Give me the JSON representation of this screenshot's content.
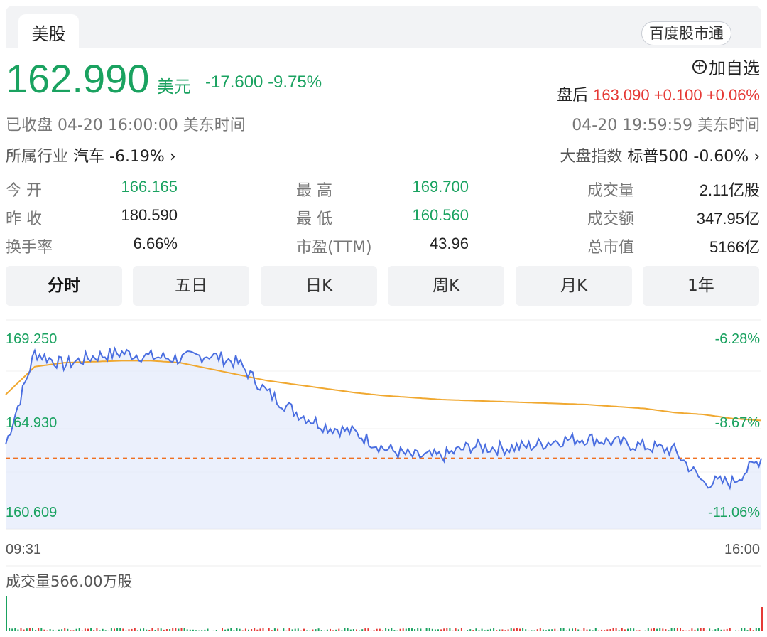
{
  "tabs": {
    "active": "美股",
    "pill": "百度股市通"
  },
  "quote": {
    "price": "162.990",
    "currency": "美元",
    "change": "-17.600 -9.75%",
    "add_watchlist": "加自选",
    "after_label": "盘后",
    "after_value": "163.090 +0.100 +0.06%",
    "status_left": "已收盘  04-20 16:00:00  美东时间",
    "status_right": "04-20 19:59:59  美东时间",
    "industry_label": "所属行业",
    "industry_value": "汽车 -6.19% ›",
    "index_label": "大盘指数",
    "index_value": "标普500 -0.60% ›"
  },
  "stats": {
    "open_label": "今  开",
    "open": "166.165",
    "prev_label": "昨  收",
    "prev": "180.590",
    "turnover_label": "换手率",
    "turnover": "6.66%",
    "high_label": "最  高",
    "high": "169.700",
    "low_label": "最  低",
    "low": "160.560",
    "pe_label": "市盈(TTM)",
    "pe": "43.96",
    "vol_label": "成交量",
    "vol": "2.11亿股",
    "amt_label": "成交额",
    "amt": "347.95亿",
    "cap_label": "总市值",
    "cap": "5166亿"
  },
  "periods": [
    "分时",
    "五日",
    "日K",
    "周K",
    "月K",
    "1年"
  ],
  "chart_labels": {
    "y_top": "169.250",
    "y_mid": "164.930",
    "y_bot": "160.609",
    "p_top": "-6.28%",
    "p_mid": "-8.67%",
    "p_bot": "-11.06%",
    "t_start": "09:31",
    "t_end": "16:00",
    "volume": "成交量566.00万股"
  },
  "colors": {
    "green": "#1aa260",
    "red": "#e53935",
    "line": "#4a6ee0",
    "avg": "#f0a830",
    "ref": "#f07020"
  },
  "chart_data": {
    "type": "line",
    "x": [
      "09:31",
      "09:45",
      "10:00",
      "10:15",
      "10:30",
      "10:45",
      "11:00",
      "11:15",
      "11:30",
      "11:45",
      "12:00",
      "12:15",
      "12:30",
      "12:45",
      "13:00",
      "13:15",
      "13:30",
      "13:45",
      "14:00",
      "14:15",
      "14:30",
      "14:45",
      "15:00",
      "15:15",
      "15:30",
      "15:45",
      "16:00"
    ],
    "series": [
      {
        "values": [
          164.0,
          168.6,
          168.0,
          168.4,
          168.6,
          168.4,
          168.3,
          168.5,
          168.1,
          166.6,
          165.6,
          164.9,
          164.6,
          163.8,
          163.4,
          163.4,
          163.9,
          163.8,
          163.9,
          164.2,
          164.3,
          164.1,
          163.9,
          163.7,
          162.1,
          162.1,
          163.3
        ]
      },
      {
        "values": [
          166.5,
          167.9,
          168.1,
          168.15,
          168.2,
          168.2,
          168.1,
          167.8,
          167.5,
          167.2,
          167.0,
          166.8,
          166.6,
          166.45,
          166.35,
          166.25,
          166.2,
          166.15,
          166.1,
          166.05,
          166.0,
          165.9,
          165.8,
          165.6,
          165.5,
          165.3,
          165.2
        ]
      }
    ],
    "reference_line": 163.3,
    "ylim": [
      160.609,
      169.25
    ]
  }
}
